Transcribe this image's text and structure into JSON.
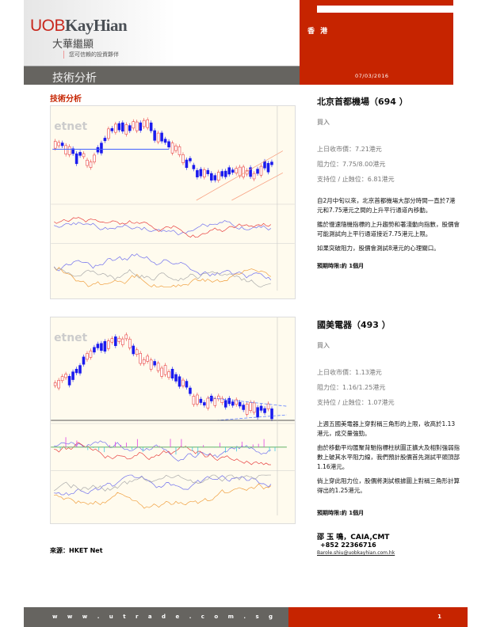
{
  "header": {
    "logo_uob": "UOB",
    "logo_kayhian": "KayHian",
    "chinese_name": "大華繼顯",
    "tagline": "您可信賴的投資夥伴",
    "section_bar": "技術分析",
    "region": "香 港",
    "date": "07/03/2016"
  },
  "section_title": "技術分析",
  "stocks": [
    {
      "title": "北京首都機場（694 ）",
      "rating": "買入",
      "close": "上日收市價：7.21港元",
      "resistance": "阻力位：7.75/8.00港元",
      "support": "支持位 / 止蝕位：6.81港元",
      "paragraphs": [
        "自2月中旬以來，北京首都機場大部分時間一直於7港元和7.75港元之間的上升平行通道內移動。",
        "鑑於慢速隨機指標的上升趨勢和著淺動向指數，股價會可能測試向上平行通道接近7.75港元上限。",
        "如果突破阻力，股價會測試8港元的心理關口。"
      ],
      "horizon": "預期時限:約 1個月",
      "chart_watermark": "etnet"
    },
    {
      "title": "國美電器（493 ）",
      "rating": "買入",
      "close": "上日收市價：1.13港元",
      "resistance": "阻力位：1.16/1.25港元",
      "support": "支持位 / 止蝕位：1.07港元",
      "paragraphs": [
        "上週五國美電器上穿對稱三角形的上限，收高於1.13港元，成交量強勁。",
        "由於移動平均匯聚背馳指標柱狀圖正擴大及相對強弱指數上破其水平阻力線，我們預計股價首先測試平頭頂部1.16港元。",
        "倘上穿此阻力位，股價將測試根據圖上對稱三角形計算得出的1.25港元。"
      ],
      "horizon": "預期時限:約 1個月",
      "chart_watermark": "etnet"
    }
  ],
  "author": {
    "name": "邵 玉 鳴，CAIA,CMT",
    "phone": "+852 22366716",
    "email": "Barole.shiu@uobkayhian.com.hk"
  },
  "source": "來源：HKET Net",
  "footer": {
    "website": "w w w . u t r a d e . c o m . s g",
    "page": "1"
  },
  "colors": {
    "brand_red": "#c62400",
    "bar_gray": "#666460",
    "up": "#e84040",
    "down": "#1a1aee"
  }
}
